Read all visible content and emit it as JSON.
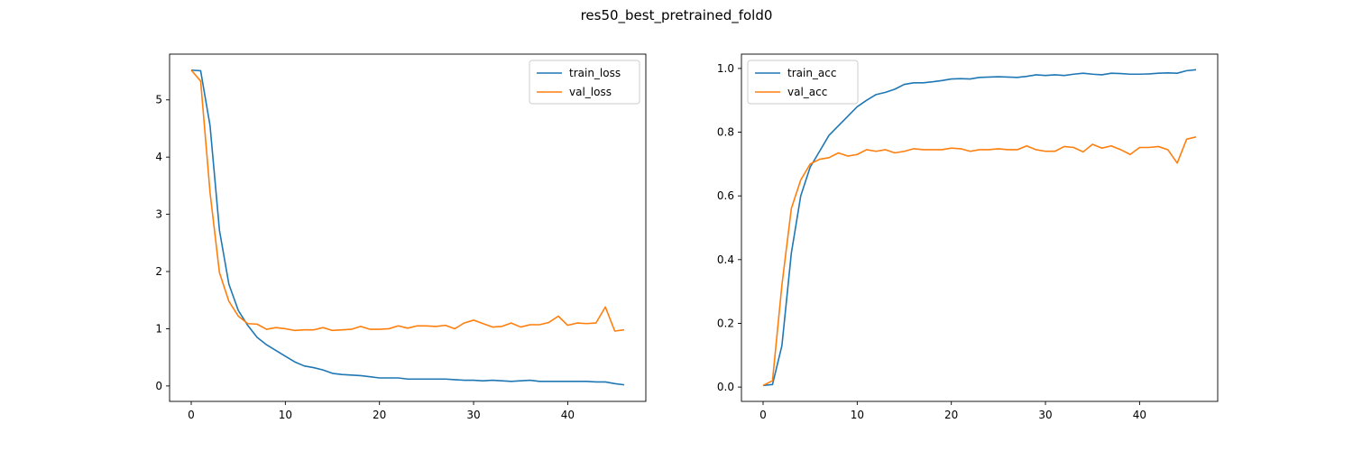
{
  "figure": {
    "title": "res50_best_pretrained_fold0"
  },
  "colors": {
    "train": "#1f77b4",
    "val": "#ff7f0e"
  },
  "chart_data": [
    {
      "type": "line",
      "title": "",
      "xlabel": "",
      "ylabel": "",
      "xlim": [
        -2.3,
        48.3
      ],
      "ylim": [
        -0.27,
        5.8
      ],
      "xticks": [
        0,
        10,
        20,
        30,
        40
      ],
      "yticks": [
        0,
        1,
        2,
        3,
        4,
        5
      ],
      "grid": false,
      "legend_position": "top-right",
      "series": [
        {
          "name": "train_loss",
          "color": "#1f77b4",
          "x": [
            0,
            1,
            2,
            3,
            4,
            5,
            6,
            7,
            8,
            9,
            10,
            11,
            12,
            13,
            14,
            15,
            16,
            17,
            18,
            19,
            20,
            21,
            22,
            23,
            24,
            25,
            26,
            27,
            28,
            29,
            30,
            31,
            32,
            33,
            34,
            35,
            36,
            37,
            38,
            39,
            40,
            41,
            42,
            43,
            44,
            45,
            46
          ],
          "values": [
            5.52,
            5.51,
            4.55,
            2.72,
            1.78,
            1.32,
            1.06,
            0.85,
            0.72,
            0.62,
            0.52,
            0.42,
            0.35,
            0.32,
            0.28,
            0.22,
            0.2,
            0.19,
            0.18,
            0.16,
            0.14,
            0.14,
            0.14,
            0.12,
            0.12,
            0.12,
            0.12,
            0.12,
            0.11,
            0.1,
            0.1,
            0.09,
            0.1,
            0.09,
            0.08,
            0.09,
            0.1,
            0.08,
            0.08,
            0.08,
            0.08,
            0.08,
            0.08,
            0.07,
            0.07,
            0.04,
            0.02
          ]
        },
        {
          "name": "val_loss",
          "color": "#ff7f0e",
          "x": [
            0,
            1,
            2,
            3,
            4,
            5,
            6,
            7,
            8,
            9,
            10,
            11,
            12,
            13,
            14,
            15,
            16,
            17,
            18,
            19,
            20,
            21,
            22,
            23,
            24,
            25,
            26,
            27,
            28,
            29,
            30,
            31,
            32,
            33,
            34,
            35,
            36,
            37,
            38,
            39,
            40,
            41,
            42,
            43,
            44,
            45,
            46
          ],
          "values": [
            5.52,
            5.33,
            3.38,
            1.98,
            1.48,
            1.22,
            1.09,
            1.08,
            0.99,
            1.02,
            1.0,
            0.97,
            0.98,
            0.98,
            1.02,
            0.97,
            0.98,
            0.99,
            1.04,
            0.99,
            0.99,
            1.0,
            1.05,
            1.01,
            1.05,
            1.05,
            1.04,
            1.06,
            1.0,
            1.1,
            1.15,
            1.09,
            1.03,
            1.04,
            1.1,
            1.03,
            1.07,
            1.07,
            1.11,
            1.22,
            1.06,
            1.1,
            1.09,
            1.1,
            1.38,
            0.96,
            0.98
          ]
        }
      ]
    },
    {
      "type": "line",
      "title": "",
      "xlabel": "",
      "ylabel": "",
      "xlim": [
        -2.3,
        48.3
      ],
      "ylim": [
        -0.045,
        1.045
      ],
      "xticks": [
        0,
        10,
        20,
        30,
        40
      ],
      "yticks": [
        0.0,
        0.2,
        0.4,
        0.6,
        0.8,
        1.0
      ],
      "ytick_labels": [
        "0.0",
        "0.2",
        "0.4",
        "0.6",
        "0.8",
        "1.0"
      ],
      "grid": false,
      "legend_position": "top-left",
      "series": [
        {
          "name": "train_acc",
          "color": "#1f77b4",
          "x": [
            0,
            1,
            2,
            3,
            4,
            5,
            6,
            7,
            8,
            9,
            10,
            11,
            12,
            13,
            14,
            15,
            16,
            17,
            18,
            19,
            20,
            21,
            22,
            23,
            24,
            25,
            26,
            27,
            28,
            29,
            30,
            31,
            32,
            33,
            34,
            35,
            36,
            37,
            38,
            39,
            40,
            41,
            42,
            43,
            44,
            45,
            46
          ],
          "values": [
            0.005,
            0.008,
            0.13,
            0.42,
            0.6,
            0.69,
            0.74,
            0.79,
            0.82,
            0.85,
            0.88,
            0.9,
            0.918,
            0.925,
            0.935,
            0.95,
            0.955,
            0.955,
            0.958,
            0.962,
            0.967,
            0.968,
            0.967,
            0.972,
            0.973,
            0.974,
            0.973,
            0.972,
            0.975,
            0.98,
            0.978,
            0.98,
            0.978,
            0.982,
            0.985,
            0.982,
            0.98,
            0.985,
            0.984,
            0.982,
            0.982,
            0.983,
            0.985,
            0.986,
            0.985,
            0.993,
            0.996
          ]
        },
        {
          "name": "val_acc",
          "color": "#ff7f0e",
          "x": [
            0,
            1,
            2,
            3,
            4,
            5,
            6,
            7,
            8,
            9,
            10,
            11,
            12,
            13,
            14,
            15,
            16,
            17,
            18,
            19,
            20,
            21,
            22,
            23,
            24,
            25,
            26,
            27,
            28,
            29,
            30,
            31,
            32,
            33,
            34,
            35,
            36,
            37,
            38,
            39,
            40,
            41,
            42,
            43,
            44,
            45,
            46
          ],
          "values": [
            0.005,
            0.02,
            0.32,
            0.56,
            0.65,
            0.7,
            0.715,
            0.72,
            0.735,
            0.725,
            0.73,
            0.745,
            0.74,
            0.745,
            0.735,
            0.74,
            0.748,
            0.745,
            0.745,
            0.745,
            0.75,
            0.748,
            0.74,
            0.745,
            0.745,
            0.748,
            0.745,
            0.745,
            0.757,
            0.745,
            0.74,
            0.74,
            0.755,
            0.752,
            0.738,
            0.762,
            0.75,
            0.757,
            0.745,
            0.73,
            0.752,
            0.752,
            0.755,
            0.745,
            0.703,
            0.778,
            0.785
          ]
        }
      ]
    }
  ]
}
